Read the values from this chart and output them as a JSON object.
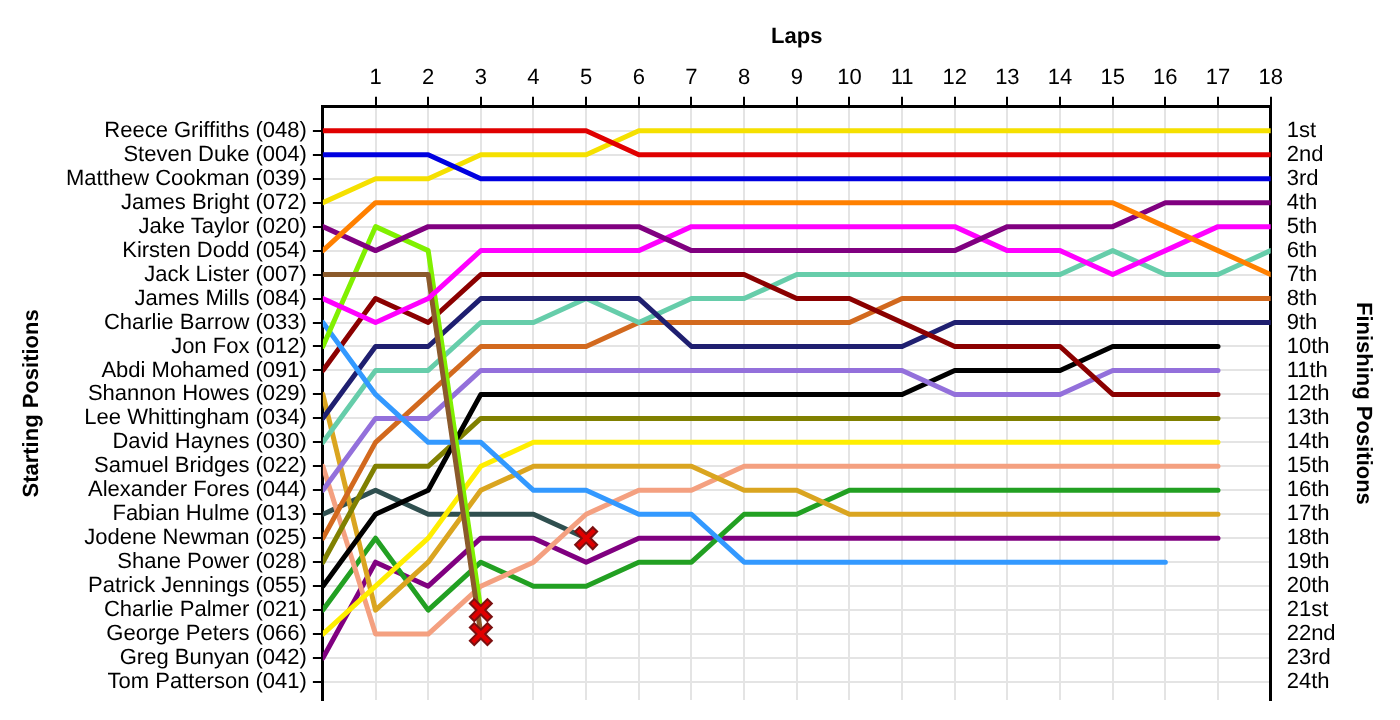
{
  "chart_data": {
    "type": "line",
    "xlabel": "Laps",
    "ylabel": "Finishing Positions",
    "annotations": [
      "Starting Positions"
    ],
    "grid": true,
    "legend": false,
    "marker": "none",
    "line_style": "solid",
    "xlim": [
      0,
      18
    ],
    "xticks": [
      1,
      2,
      3,
      4,
      5,
      6,
      7,
      8,
      9,
      10,
      11,
      12,
      13,
      14,
      15,
      16,
      17,
      18
    ],
    "ylim": [
      24.75,
      0
    ],
    "y2_categories": [
      "Reece Griffiths (048)",
      "Steven Duke (004)",
      "Matthew Cookman (039)",
      "James Bright (072)",
      "Jake Taylor (020)",
      "Kirsten Dodd (054)",
      "Jack Lister (007)",
      "James Mills (084)",
      "Charlie Barrow (033)",
      "Jon Fox (012)",
      "Abdi Mohamed (091)",
      "Shannon Howes (029)",
      "Lee Whittingham (034)",
      "David Haynes (030)",
      "Samuel Bridges (022)",
      "Alexander Fores (044)",
      "Fabian Hulme (013)",
      "Jodene Newman (025)",
      "Shane Power (028)",
      "Patrick Jennings (055)",
      "Charlie Palmer (021)",
      "George Peters (066)",
      "Greg Bunyan (042)",
      "Tom Patterson (041)"
    ],
    "yticks": [
      {
        "value": 1,
        "label": "1st"
      },
      {
        "value": 2,
        "label": "2nd"
      },
      {
        "value": 3,
        "label": "3rd"
      },
      {
        "value": 4,
        "label": "4th"
      },
      {
        "value": 5,
        "label": "5th"
      },
      {
        "value": 6,
        "label": "6th"
      },
      {
        "value": 7,
        "label": "7th"
      },
      {
        "value": 8,
        "label": "8th"
      },
      {
        "value": 9,
        "label": "9th"
      },
      {
        "value": 10,
        "label": "10th"
      },
      {
        "value": 11,
        "label": "11th"
      },
      {
        "value": 12,
        "label": "12th"
      },
      {
        "value": 13,
        "label": "13th"
      },
      {
        "value": 14,
        "label": "14th"
      },
      {
        "value": 15,
        "label": "15th"
      },
      {
        "value": 16,
        "label": "16th"
      },
      {
        "value": 17,
        "label": "17th"
      },
      {
        "value": 18,
        "label": "18th"
      },
      {
        "value": 19,
        "label": "19th"
      },
      {
        "value": 20,
        "label": "20th"
      },
      {
        "value": 21,
        "label": "21st"
      },
      {
        "value": 22,
        "label": "22nd"
      },
      {
        "value": 23,
        "label": "23rd"
      },
      {
        "value": 24,
        "label": "24th"
      }
    ],
    "x": [
      0,
      1,
      2,
      3,
      4,
      5,
      6,
      7,
      8,
      9,
      10,
      11,
      12,
      13,
      14,
      15,
      16,
      17,
      18
    ],
    "series": [
      {
        "color": "#e00000",
        "values": [
          1,
          1,
          1,
          1,
          1,
          1,
          2,
          2,
          2,
          2,
          2,
          2,
          2,
          2,
          2,
          2,
          2,
          2,
          2
        ]
      },
      {
        "color": "#0000e0",
        "values": [
          2,
          2,
          2,
          3,
          3,
          3,
          3,
          3,
          3,
          3,
          3,
          3,
          3,
          3,
          3,
          3,
          3,
          3,
          3
        ]
      },
      {
        "color": "#f5e000",
        "values": [
          4,
          3,
          3,
          2,
          2,
          2,
          1,
          1,
          1,
          1,
          1,
          1,
          1,
          1,
          1,
          1,
          1,
          1,
          1
        ]
      },
      {
        "color": "#ff8000",
        "values": [
          6,
          4,
          4,
          4,
          4,
          4,
          4,
          4,
          4,
          4,
          4,
          4,
          4,
          4,
          4,
          4,
          5,
          6,
          7
        ]
      },
      {
        "color": "#800080",
        "values": [
          5,
          6,
          5,
          5,
          5,
          5,
          5,
          6,
          6,
          6,
          6,
          6,
          6,
          5,
          5,
          5,
          4,
          4,
          4
        ]
      },
      {
        "color": "#ff00ff",
        "values": [
          8,
          9,
          8,
          6,
          6,
          6,
          6,
          5,
          5,
          5,
          5,
          5,
          5,
          6,
          6,
          7,
          6,
          5,
          5
        ]
      },
      {
        "color": "#8b5a2b",
        "values": [
          7,
          7,
          7,
          22,
          null,
          null,
          null,
          null,
          null,
          null,
          null,
          null,
          null,
          null,
          null,
          null,
          null,
          null,
          null
        ]
      },
      {
        "color": "#80f000",
        "values": [
          10,
          5,
          6,
          21,
          null,
          null,
          null,
          null,
          null,
          null,
          null,
          null,
          null,
          null,
          null,
          null,
          null,
          null,
          null
        ]
      },
      {
        "color": "#3399ff",
        "values": [
          9,
          12,
          14,
          14,
          16,
          16,
          17,
          17,
          19,
          19,
          19,
          19,
          19,
          19,
          19,
          19,
          19,
          null,
          null
        ]
      },
      {
        "color": "#8b0000",
        "values": [
          11,
          8,
          9,
          7,
          7,
          7,
          7,
          7,
          7,
          8,
          8,
          9,
          10,
          10,
          10,
          12,
          12,
          12,
          null
        ]
      },
      {
        "color": "#1f1f70",
        "values": [
          13,
          10,
          10,
          8,
          8,
          8,
          8,
          10,
          10,
          10,
          10,
          10,
          9,
          9,
          9,
          9,
          9,
          9,
          9
        ]
      },
      {
        "color": "#66cdaa",
        "values": [
          14,
          11,
          11,
          9,
          9,
          8,
          9,
          8,
          8,
          7,
          7,
          7,
          7,
          7,
          7,
          6,
          7,
          7,
          6
        ]
      },
      {
        "color": "#9370db",
        "values": [
          16,
          13,
          13,
          11,
          11,
          11,
          11,
          11,
          11,
          11,
          11,
          11,
          12,
          12,
          12,
          11,
          11,
          11,
          null
        ]
      },
      {
        "color": "#000000",
        "values": [
          20,
          17,
          16,
          12,
          12,
          12,
          12,
          12,
          12,
          12,
          12,
          12,
          11,
          11,
          11,
          10,
          10,
          10,
          null
        ]
      },
      {
        "color": "#d2691e",
        "values": [
          18,
          14,
          12,
          10,
          10,
          10,
          9,
          9,
          9,
          9,
          9,
          8,
          8,
          8,
          8,
          8,
          8,
          8,
          8
        ]
      },
      {
        "color": "#808000",
        "values": [
          19,
          15,
          15,
          13,
          13,
          13,
          13,
          13,
          13,
          13,
          13,
          13,
          13,
          13,
          13,
          13,
          13,
          13,
          null
        ]
      },
      {
        "color": "#ffee00",
        "values": [
          22,
          20,
          18,
          15,
          14,
          14,
          14,
          14,
          14,
          14,
          14,
          14,
          14,
          14,
          14,
          14,
          14,
          14,
          null
        ]
      },
      {
        "color": "#daa520",
        "values": [
          12,
          21,
          19,
          16,
          15,
          15,
          15,
          15,
          16,
          16,
          17,
          17,
          17,
          17,
          17,
          17,
          17,
          17,
          null
        ]
      },
      {
        "color": "#f4a080",
        "values": [
          15,
          22,
          22,
          20,
          19,
          17,
          16,
          16,
          15,
          15,
          15,
          15,
          15,
          15,
          15,
          15,
          15,
          15,
          null
        ]
      },
      {
        "color": "#22a022",
        "values": [
          21,
          18,
          21,
          19,
          20,
          20,
          19,
          19,
          17,
          17,
          16,
          16,
          16,
          16,
          16,
          16,
          16,
          16,
          null
        ]
      },
      {
        "color": "#800080",
        "values": [
          23,
          19,
          20,
          18,
          18,
          19,
          18,
          18,
          18,
          18,
          18,
          18,
          18,
          18,
          18,
          18,
          18,
          18,
          null
        ]
      },
      {
        "color": "#2f4f4f",
        "values": [
          17,
          16,
          17,
          17,
          17,
          18,
          null,
          null,
          null,
          null,
          null,
          null,
          null,
          null,
          null,
          null,
          null,
          null,
          null
        ]
      },
      {
        "type": "scatter",
        "marker": "cross",
        "color": "#e00000",
        "values": [
          null,
          null,
          null,
          21,
          null,
          18,
          null,
          null,
          null,
          null,
          null,
          null,
          null,
          null,
          null,
          null,
          null,
          null,
          null
        ]
      },
      {
        "type": "scatter",
        "marker": "cross",
        "color": "#e00000",
        "values": [
          null,
          null,
          null,
          22,
          null,
          null,
          null,
          null,
          null,
          null,
          null,
          null,
          null,
          null,
          null,
          null,
          null,
          null,
          null
        ]
      }
    ]
  }
}
